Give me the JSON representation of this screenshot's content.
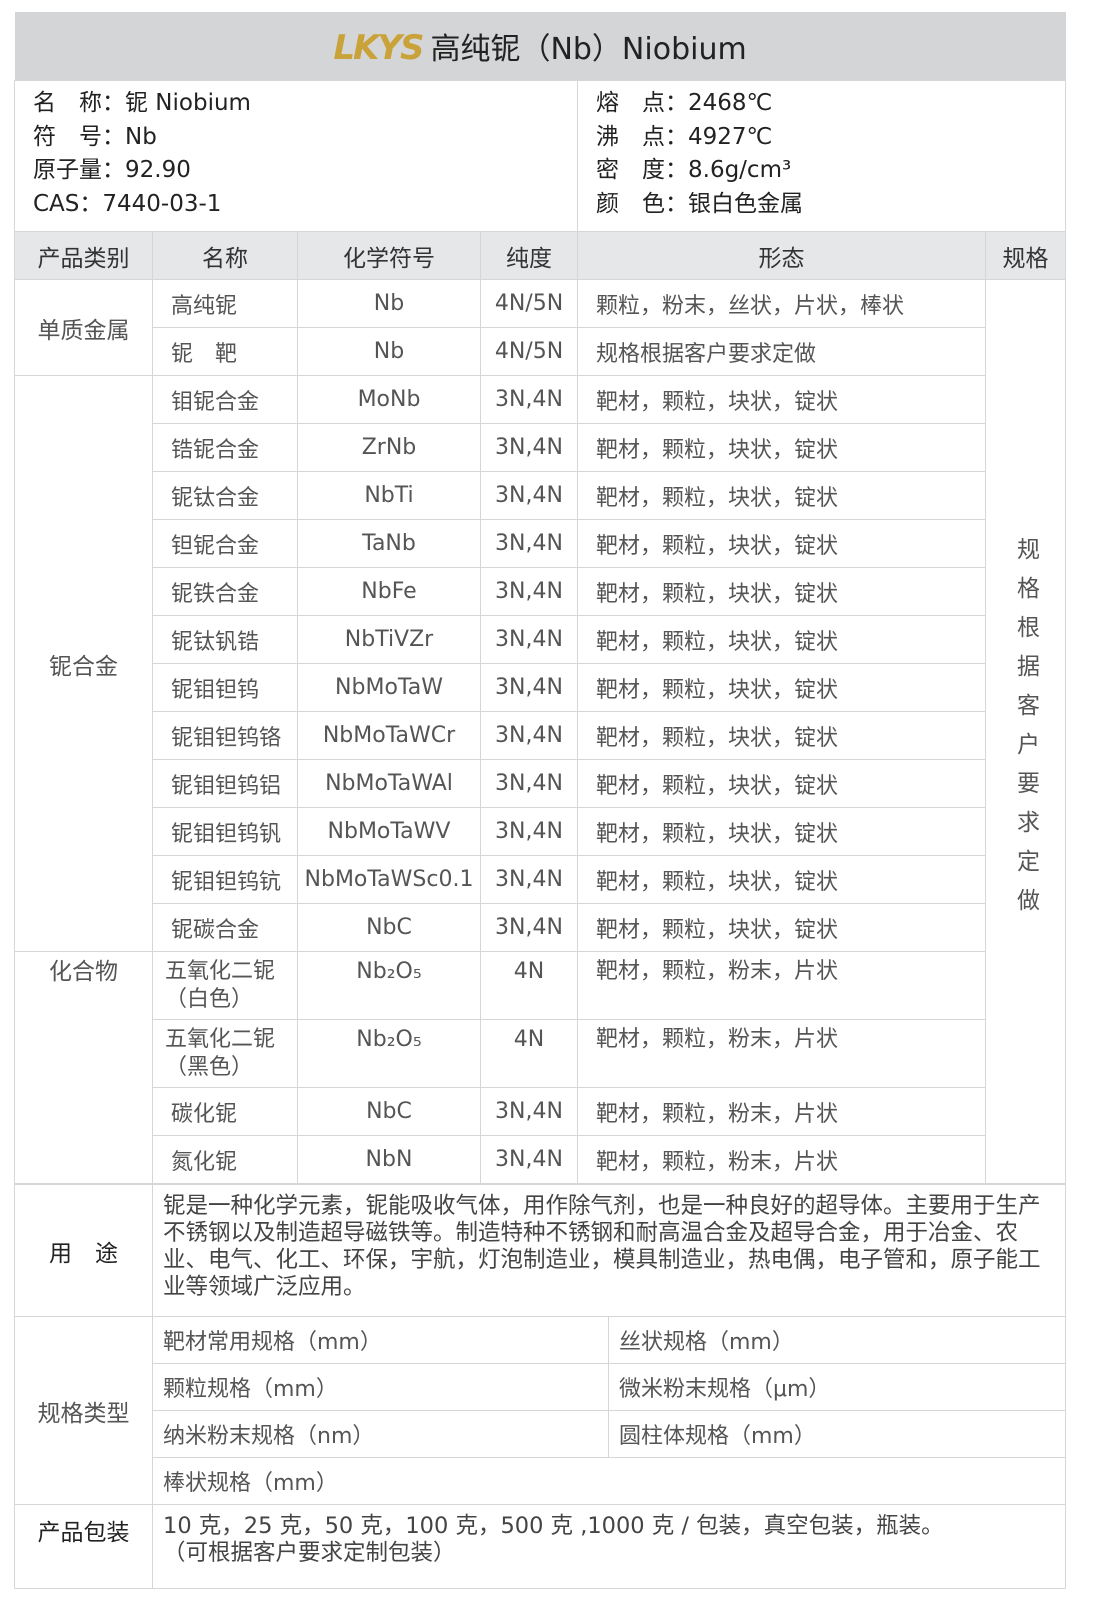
{
  "header": {
    "logo": "LKYS",
    "title": "高纯铌（Nb）Niobium"
  },
  "info": {
    "left": [
      "名　称：铌 Niobium",
      "符　号：Nb",
      "原子量：92.90",
      "CAS：7440-03-1"
    ],
    "right": [
      "熔　点：2468℃",
      "沸　点：4927℃",
      "密　度：8.6g/cm³",
      "颜　色：银白色金属"
    ]
  },
  "columns": [
    "产品类别",
    "名称",
    "化学符号",
    "纯度",
    "形态",
    "规格"
  ],
  "groups": [
    {
      "category": "单质金属",
      "rows": [
        [
          "高纯铌",
          "Nb",
          "4N/5N",
          "颗粒，粉末，丝状，片状，棒状"
        ],
        [
          "铌　靶",
          "Nb",
          "4N/5N",
          "规格根据客户要求定做"
        ]
      ]
    },
    {
      "category": "铌合金",
      "rows": [
        [
          "钼铌合金",
          "MoNb",
          "3N,4N",
          "靶材，颗粒，块状，锭状"
        ],
        [
          "锆铌合金",
          "ZrNb",
          "3N,4N",
          "靶材，颗粒，块状，锭状"
        ],
        [
          "铌钛合金",
          "NbTi",
          "3N,4N",
          "靶材，颗粒，块状，锭状"
        ],
        [
          "钽铌合金",
          "TaNb",
          "3N,4N",
          "靶材，颗粒，块状，锭状"
        ],
        [
          "铌铁合金",
          "NbFe",
          "3N,4N",
          "靶材，颗粒，块状，锭状"
        ],
        [
          "铌钛钒锆",
          "NbTiVZr",
          "3N,4N",
          "靶材，颗粒，块状，锭状"
        ],
        [
          "铌钼钽钨",
          "NbMoTaW",
          "3N,4N",
          "靶材，颗粒，块状，锭状"
        ],
        [
          "铌钼钽钨铬",
          "NbMoTaWCr",
          "3N,4N",
          "靶材，颗粒，块状，锭状"
        ],
        [
          "铌钼钽钨铝",
          "NbMoTaWAl",
          "3N,4N",
          "靶材，颗粒，块状，锭状"
        ],
        [
          "铌钼钽钨钒",
          "NbMoTaWV",
          "3N,4N",
          "靶材，颗粒，块状，锭状"
        ],
        [
          "铌钼钽钨钪",
          "NbMoTaWSc0.1",
          "3N,4N",
          "靶材，颗粒，块状，锭状"
        ],
        [
          "铌碳合金",
          "NbC",
          "3N,4N",
          "靶材，颗粒，块状，锭状"
        ]
      ]
    },
    {
      "category": "化合物",
      "rows": [
        [
          "五氧化二铌（白色）",
          "Nb₂O₅",
          "4N",
          "靶材，颗粒，粉末，片状"
        ],
        [
          "五氧化二铌（黑色）",
          "Nb₂O₅",
          "4N",
          "靶材，颗粒，粉末，片状"
        ],
        [
          "碳化铌",
          "NbC",
          "3N,4N",
          "靶材，颗粒，粉末，片状"
        ],
        [
          "氮化铌",
          "NbN",
          "3N,4N",
          "靶材，颗粒，粉末，片状"
        ]
      ]
    }
  ],
  "spec_note": "规格根据客户要求定做",
  "usage": {
    "label": "用　途",
    "text": "铌是一种化学元素，铌能吸收气体，用作除气剂，也是一种良好的超导体。主要用于生产不锈钢以及制造超导磁铁等。制造特种不锈钢和耐高温合金及超导合金，用于冶金、农业、电气、化工、环保，宇航，灯泡制造业，模具制造业，热电偶，电子管和，原子能工业等领域广泛应用。"
  },
  "spec_types": {
    "label": "规格类型",
    "items": [
      "靶材常用规格（mm）",
      "丝状规格（mm）",
      "颗粒规格（mm）",
      "微米粉末规格（μm）",
      "纳米粉末规格（nm）",
      "圆柱体规格（mm）",
      "棒状规格（mm）"
    ]
  },
  "packaging": {
    "label": "产品包装",
    "text": "10 克，25 克，50 克，100 克，500 克 ,1000 克 / 包装，真空包装，瓶装。",
    "note": "（可根据客户要求定制包装）"
  }
}
